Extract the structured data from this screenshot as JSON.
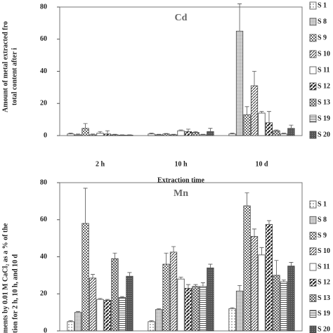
{
  "chart_data": [
    {
      "type": "bar",
      "title": "Cd",
      "ylabel": [
        "Amount of metal extracted fro",
        "total content after i"
      ],
      "xlabel": "Extraction time",
      "categories": [
        "2 h",
        "10 h",
        "10 d"
      ],
      "ylim": [
        0,
        80
      ],
      "yticks": [
        0,
        20,
        40,
        60,
        80
      ],
      "series": [
        {
          "name": "S 1",
          "color": "#444",
          "pattern": "dots",
          "values": [
            1,
            1,
            1
          ],
          "errors": [
            0.5,
            0.5,
            0.5
          ]
        },
        {
          "name": "S 8",
          "color": "#444",
          "pattern": "fine",
          "values": [
            0.5,
            0.5,
            65
          ],
          "errors": [
            0.5,
            0.3,
            17
          ]
        },
        {
          "name": "S 9",
          "color": "#444",
          "pattern": "check",
          "values": [
            4.5,
            1,
            13
          ],
          "errors": [
            3,
            0.3,
            5
          ]
        },
        {
          "name": "S 10",
          "color": "#444",
          "pattern": "diag",
          "values": [
            0.5,
            0.5,
            31
          ],
          "errors": [
            0.5,
            0.3,
            9
          ]
        },
        {
          "name": "S 11",
          "color": "#444",
          "pattern": "white",
          "values": [
            1.5,
            3,
            14
          ],
          "errors": [
            1,
            0.5,
            1
          ]
        },
        {
          "name": "S 12",
          "color": "#444",
          "pattern": "thick",
          "values": [
            1,
            2.5,
            8
          ],
          "errors": [
            2,
            1.5,
            7
          ]
        },
        {
          "name": "S 13",
          "color": "#444",
          "pattern": "cross",
          "values": [
            0.5,
            2,
            3
          ],
          "errors": [
            0.3,
            0.5,
            0.5
          ]
        },
        {
          "name": "S 19",
          "color": "#444",
          "pattern": "stripe",
          "values": [
            0.3,
            0.5,
            1
          ],
          "errors": [
            0.2,
            0.3,
            0.5
          ]
        },
        {
          "name": "S 20",
          "color": "#444",
          "pattern": "dark",
          "values": [
            0.3,
            2.5,
            4.5
          ],
          "errors": [
            0.2,
            2,
            2
          ]
        }
      ]
    },
    {
      "type": "bar",
      "title": "Mn",
      "ylabel": [
        "ments by 0.01 M CaCl₂ as a % of the",
        "tion for 2 h, 10 h, and 10 d"
      ],
      "categories": [
        null,
        null,
        null
      ],
      "ylim": [
        0,
        80
      ],
      "yticks": [
        0,
        20,
        40,
        60,
        80
      ],
      "series": [
        {
          "name": "S 1",
          "color": "#444",
          "pattern": "dots",
          "values": [
            5,
            5,
            12
          ],
          "errors": [
            0.5,
            0.5,
            0.5
          ]
        },
        {
          "name": "S 8",
          "color": "#444",
          "pattern": "fine",
          "values": [
            10,
            11.5,
            21.5
          ],
          "errors": [
            0.5,
            0.5,
            3
          ]
        },
        {
          "name": "S 9",
          "color": "#444",
          "pattern": "check",
          "values": [
            58,
            36,
            67.5
          ],
          "errors": [
            19,
            6,
            7
          ]
        },
        {
          "name": "S 10",
          "color": "#444",
          "pattern": "diag",
          "values": [
            28.5,
            42.5,
            51
          ],
          "errors": [
            2,
            3,
            4
          ]
        },
        {
          "name": "S 11",
          "color": "#444",
          "pattern": "white",
          "values": [
            17,
            28,
            41
          ],
          "errors": [
            0.5,
            1,
            4
          ]
        },
        {
          "name": "S 12",
          "color": "#444",
          "pattern": "thick",
          "values": [
            16.5,
            23,
            57.5
          ],
          "errors": [
            0.5,
            2,
            2
          ]
        },
        {
          "name": "S 13",
          "color": "#444",
          "pattern": "cross",
          "values": [
            39,
            24,
            30
          ],
          "errors": [
            3,
            1,
            8
          ]
        },
        {
          "name": "S 19",
          "color": "#444",
          "pattern": "stripe",
          "values": [
            18,
            24,
            26.5
          ],
          "errors": [
            0.5,
            2,
            1
          ]
        },
        {
          "name": "S 20",
          "color": "#444",
          "pattern": "dark",
          "values": [
            29.5,
            34,
            35
          ],
          "errors": [
            2,
            2,
            2
          ]
        }
      ]
    }
  ]
}
